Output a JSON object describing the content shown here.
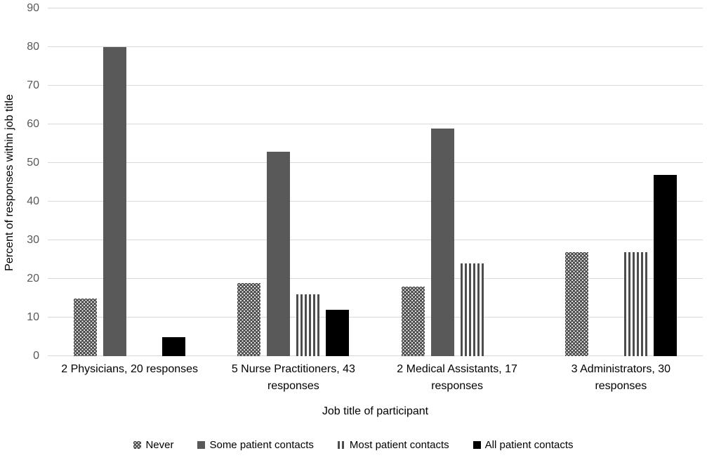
{
  "chart_data": {
    "type": "bar",
    "title": "",
    "xlabel": "Job title of participant",
    "ylabel": "Percent of responses within job title",
    "ylim": [
      0,
      90
    ],
    "yticks": [
      0,
      10,
      20,
      30,
      40,
      50,
      60,
      70,
      80,
      90
    ],
    "grid": true,
    "legend_position": "bottom",
    "categories": [
      "2 Physicians, 20 responses",
      "5 Nurse Practitioners, 43 responses",
      "2 Medical Assistants, 17 responses",
      "3 Administrators, 30 responses"
    ],
    "series": [
      {
        "name": "Never",
        "pattern": "dots",
        "values": [
          15,
          19,
          18,
          27
        ]
      },
      {
        "name": "Some patient contacts",
        "pattern": "solid-gray",
        "values": [
          80,
          53,
          59,
          0
        ]
      },
      {
        "name": "Most patient contacts",
        "pattern": "vertical-stripes",
        "values": [
          0,
          16,
          24,
          27
        ]
      },
      {
        "name": "All patient contacts",
        "pattern": "solid-black",
        "values": [
          5,
          12,
          0,
          47
        ]
      }
    ]
  },
  "colors": {
    "bar_gray": "#595959",
    "bar_black": "#000000",
    "pattern_ink": "#4d4d4d",
    "gridline": "#d9d9d9",
    "tick_label": "#595959",
    "label_text": "#000000"
  }
}
